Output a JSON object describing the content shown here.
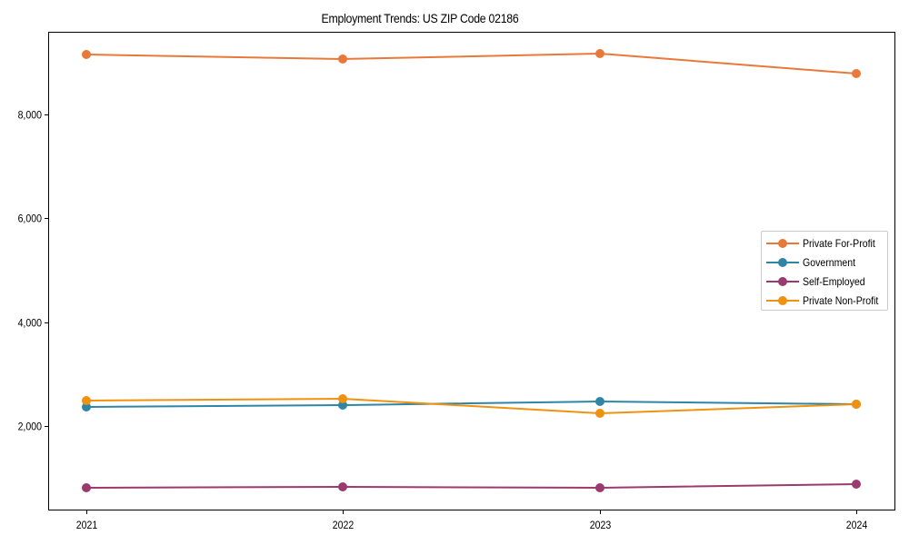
{
  "chart_data": {
    "type": "line",
    "title": "Employment Trends: US ZIP Code 02186",
    "xlabel": "",
    "ylabel": "",
    "categories": [
      "2021",
      "2022",
      "2023",
      "2024"
    ],
    "x": [
      2021,
      2022,
      2023,
      2024
    ],
    "yticks": [
      2000,
      4000,
      6000,
      8000
    ],
    "ytick_labels": [
      "2,000",
      "4,000",
      "6,000",
      "8,000"
    ],
    "ylim": [
      600,
      9600
    ],
    "grid": false,
    "legend_position": "center right",
    "series": [
      {
        "name": "Private For-Profit",
        "color": "#e8793a",
        "marker": "circle",
        "values": [
          9155,
          9067,
          9172,
          8787
        ]
      },
      {
        "name": "Government",
        "color": "#2e86a6",
        "marker": "circle",
        "values": [
          2367,
          2402,
          2472,
          2420
        ]
      },
      {
        "name": "Self-Employed",
        "color": "#9b3a6e",
        "marker": "circle",
        "values": [
          811,
          828,
          811,
          880
        ]
      },
      {
        "name": "Private Non-Profit",
        "color": "#f0920f",
        "marker": "circle",
        "values": [
          2490,
          2525,
          2245,
          2420
        ]
      }
    ]
  },
  "legend": {
    "items": [
      {
        "label": "Private For-Profit",
        "color": "#e8793a"
      },
      {
        "label": "Government",
        "color": "#2e86a6"
      },
      {
        "label": "Self-Employed",
        "color": "#9b3a6e"
      },
      {
        "label": "Private Non-Profit",
        "color": "#f0920f"
      }
    ]
  }
}
